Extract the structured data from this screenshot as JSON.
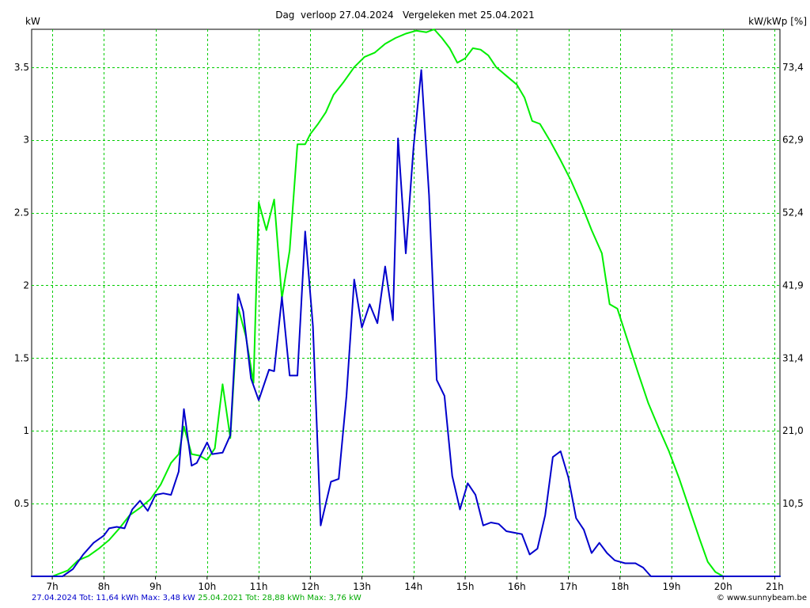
{
  "header": {
    "title": "Dag  verloop 27.04.2024   Vergeleken met 25.04.2021",
    "left_unit": "kW",
    "right_unit": "kW/kWp [%]"
  },
  "footer": {
    "series1_text": "27.04.2024 Tot: 11,64 kWh Max: 3,48 kW",
    "series2_text": "25.04.2021 Tot: 28,88 kWh Max: 3,76 kW",
    "credit": "© www.sunnybeam.be"
  },
  "colors": {
    "grid": "#00cc00",
    "series_2024": "#0000cc",
    "series_2021": "#00ee00",
    "text": "#000000"
  },
  "chart_data": {
    "type": "line",
    "title": "Dag  verloop 27.04.2024   Vergeleken met 25.04.2021",
    "xlabel": "",
    "ylabel": "kW",
    "ylabel_right": "kW/kWp [%]",
    "xlim": [
      6.6,
      21.1
    ],
    "ylim": [
      0,
      3.76
    ],
    "x_ticks": [
      {
        "value": 7,
        "label": "7h"
      },
      {
        "value": 8,
        "label": "8h"
      },
      {
        "value": 9,
        "label": "9h"
      },
      {
        "value": 10,
        "label": "10h"
      },
      {
        "value": 11,
        "label": "11h"
      },
      {
        "value": 12,
        "label": "12h"
      },
      {
        "value": 13,
        "label": "13h"
      },
      {
        "value": 14,
        "label": "14h"
      },
      {
        "value": 15,
        "label": "15h"
      },
      {
        "value": 16,
        "label": "16h"
      },
      {
        "value": 17,
        "label": "17h"
      },
      {
        "value": 18,
        "label": "18h"
      },
      {
        "value": 19,
        "label": "19h"
      },
      {
        "value": 20,
        "label": "20h"
      },
      {
        "value": 21,
        "label": "21h"
      }
    ],
    "y_ticks_left": [
      {
        "value": 0.5,
        "label": "0.5"
      },
      {
        "value": 1,
        "label": "1"
      },
      {
        "value": 1.5,
        "label": "1.5"
      },
      {
        "value": 2,
        "label": "2"
      },
      {
        "value": 2.5,
        "label": "2.5"
      },
      {
        "value": 3,
        "label": "3"
      },
      {
        "value": 3.5,
        "label": "3.5"
      }
    ],
    "y_ticks_right": [
      {
        "value": 0.5,
        "label": "10,5"
      },
      {
        "value": 1,
        "label": "21,0"
      },
      {
        "value": 1.5,
        "label": "31,4"
      },
      {
        "value": 2,
        "label": "41,9"
      },
      {
        "value": 2.5,
        "label": "52,4"
      },
      {
        "value": 3,
        "label": "62,9"
      },
      {
        "value": 3.5,
        "label": "73,4"
      }
    ],
    "grid": true,
    "series": [
      {
        "name": "27.04.2024",
        "color": "#0000cc",
        "points": [
          [
            6.6,
            0
          ],
          [
            7.2,
            0
          ],
          [
            7.4,
            0.05
          ],
          [
            7.6,
            0.15
          ],
          [
            7.8,
            0.23
          ],
          [
            8.0,
            0.28
          ],
          [
            8.1,
            0.33
          ],
          [
            8.25,
            0.34
          ],
          [
            8.4,
            0.33
          ],
          [
            8.55,
            0.46
          ],
          [
            8.7,
            0.52
          ],
          [
            8.85,
            0.45
          ],
          [
            9.0,
            0.56
          ],
          [
            9.15,
            0.57
          ],
          [
            9.3,
            0.56
          ],
          [
            9.45,
            0.72
          ],
          [
            9.55,
            1.15
          ],
          [
            9.7,
            0.76
          ],
          [
            9.8,
            0.78
          ],
          [
            10.0,
            0.92
          ],
          [
            10.1,
            0.84
          ],
          [
            10.3,
            0.85
          ],
          [
            10.45,
            0.97
          ],
          [
            10.6,
            1.94
          ],
          [
            10.7,
            1.82
          ],
          [
            10.85,
            1.36
          ],
          [
            11.0,
            1.21
          ],
          [
            11.2,
            1.42
          ],
          [
            11.3,
            1.41
          ],
          [
            11.45,
            1.92
          ],
          [
            11.6,
            1.38
          ],
          [
            11.75,
            1.38
          ],
          [
            11.9,
            2.37
          ],
          [
            12.05,
            1.72
          ],
          [
            12.2,
            0.35
          ],
          [
            12.4,
            0.65
          ],
          [
            12.55,
            0.67
          ],
          [
            12.7,
            1.24
          ],
          [
            12.85,
            2.04
          ],
          [
            13.0,
            1.71
          ],
          [
            13.15,
            1.87
          ],
          [
            13.3,
            1.74
          ],
          [
            13.45,
            2.13
          ],
          [
            13.6,
            1.76
          ],
          [
            13.7,
            3.01
          ],
          [
            13.85,
            2.22
          ],
          [
            14.0,
            2.95
          ],
          [
            14.15,
            3.48
          ],
          [
            14.3,
            2.62
          ],
          [
            14.45,
            1.35
          ],
          [
            14.6,
            1.24
          ],
          [
            14.75,
            0.69
          ],
          [
            14.9,
            0.46
          ],
          [
            15.05,
            0.64
          ],
          [
            15.2,
            0.56
          ],
          [
            15.35,
            0.35
          ],
          [
            15.5,
            0.37
          ],
          [
            15.65,
            0.36
          ],
          [
            15.8,
            0.31
          ],
          [
            15.95,
            0.3
          ],
          [
            16.1,
            0.29
          ],
          [
            16.25,
            0.15
          ],
          [
            16.4,
            0.19
          ],
          [
            16.55,
            0.42
          ],
          [
            16.7,
            0.82
          ],
          [
            16.85,
            0.86
          ],
          [
            17.0,
            0.68
          ],
          [
            17.15,
            0.4
          ],
          [
            17.3,
            0.32
          ],
          [
            17.45,
            0.16
          ],
          [
            17.6,
            0.23
          ],
          [
            17.75,
            0.16
          ],
          [
            17.9,
            0.11
          ],
          [
            18.1,
            0.09
          ],
          [
            18.3,
            0.09
          ],
          [
            18.45,
            0.06
          ],
          [
            18.6,
            0.0
          ],
          [
            21.1,
            0.0
          ]
        ]
      },
      {
        "name": "25.04.2021",
        "color": "#00ee00",
        "points": [
          [
            6.6,
            0
          ],
          [
            7.0,
            0
          ],
          [
            7.3,
            0.04
          ],
          [
            7.5,
            0.11
          ],
          [
            7.7,
            0.14
          ],
          [
            7.9,
            0.19
          ],
          [
            8.1,
            0.25
          ],
          [
            8.3,
            0.33
          ],
          [
            8.5,
            0.42
          ],
          [
            8.7,
            0.47
          ],
          [
            8.9,
            0.53
          ],
          [
            9.1,
            0.63
          ],
          [
            9.3,
            0.78
          ],
          [
            9.45,
            0.84
          ],
          [
            9.55,
            1.03
          ],
          [
            9.7,
            0.84
          ],
          [
            9.85,
            0.83
          ],
          [
            10.0,
            0.8
          ],
          [
            10.15,
            0.88
          ],
          [
            10.3,
            1.32
          ],
          [
            10.45,
            0.95
          ],
          [
            10.6,
            1.85
          ],
          [
            10.75,
            1.65
          ],
          [
            10.9,
            1.33
          ],
          [
            11.0,
            2.57
          ],
          [
            11.15,
            2.38
          ],
          [
            11.3,
            2.59
          ],
          [
            11.45,
            1.91
          ],
          [
            11.6,
            2.24
          ],
          [
            11.75,
            2.97
          ],
          [
            11.9,
            2.97
          ],
          [
            12.0,
            3.04
          ],
          [
            12.15,
            3.11
          ],
          [
            12.3,
            3.19
          ],
          [
            12.45,
            3.31
          ],
          [
            12.65,
            3.4
          ],
          [
            12.85,
            3.5
          ],
          [
            13.05,
            3.57
          ],
          [
            13.25,
            3.6
          ],
          [
            13.45,
            3.66
          ],
          [
            13.65,
            3.7
          ],
          [
            13.85,
            3.73
          ],
          [
            14.05,
            3.75
          ],
          [
            14.25,
            3.74
          ],
          [
            14.4,
            3.76
          ],
          [
            14.55,
            3.7
          ],
          [
            14.7,
            3.63
          ],
          [
            14.85,
            3.53
          ],
          [
            15.0,
            3.56
          ],
          [
            15.15,
            3.63
          ],
          [
            15.3,
            3.62
          ],
          [
            15.45,
            3.58
          ],
          [
            15.6,
            3.5
          ],
          [
            15.8,
            3.44
          ],
          [
            16.0,
            3.38
          ],
          [
            16.15,
            3.29
          ],
          [
            16.3,
            3.13
          ],
          [
            16.45,
            3.11
          ],
          [
            16.65,
            2.99
          ],
          [
            16.85,
            2.86
          ],
          [
            17.05,
            2.72
          ],
          [
            17.25,
            2.56
          ],
          [
            17.45,
            2.38
          ],
          [
            17.65,
            2.22
          ],
          [
            17.8,
            1.87
          ],
          [
            17.95,
            1.84
          ],
          [
            18.15,
            1.62
          ],
          [
            18.35,
            1.4
          ],
          [
            18.55,
            1.19
          ],
          [
            18.75,
            1.02
          ],
          [
            18.95,
            0.86
          ],
          [
            19.15,
            0.67
          ],
          [
            19.35,
            0.46
          ],
          [
            19.55,
            0.25
          ],
          [
            19.7,
            0.1
          ],
          [
            19.85,
            0.03
          ],
          [
            20.0,
            0.0
          ],
          [
            21.1,
            0.0
          ]
        ]
      }
    ]
  }
}
